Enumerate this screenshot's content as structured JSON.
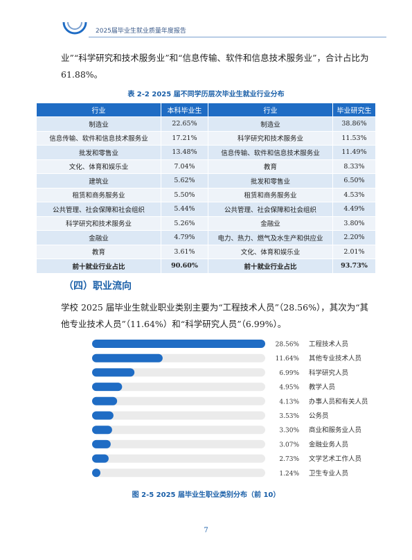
{
  "header": {
    "title": "2025届毕业生就业质量年度报告"
  },
  "intro": {
    "text": "业”“科学研究和技术服务业”和“信息传输、软件和信息技术服务业”，合计占比为 61.88%。"
  },
  "table": {
    "caption": "表 2-2  2025 届不同学历层次毕业生就业行业分布",
    "headers": [
      "行业",
      "本科毕业生",
      "行业",
      "毕业研究生"
    ],
    "rows": [
      [
        "制造业",
        "22.65%",
        "制造业",
        "38.86%"
      ],
      [
        "信息传输、软件和信息技术服务业",
        "17.21%",
        "科学研究和技术服务业",
        "11.53%"
      ],
      [
        "批发和零售业",
        "13.48%",
        "信息传输、软件和信息技术服务业",
        "11.49%"
      ],
      [
        "文化、体育和娱乐业",
        "7.04%",
        "教育",
        "8.33%"
      ],
      [
        "建筑业",
        "5.62%",
        "批发和零售业",
        "6.50%"
      ],
      [
        "租赁和商务服务业",
        "5.50%",
        "租赁和商务服务业",
        "4.53%"
      ],
      [
        "公共管理、社会保障和社会组织",
        "5.44%",
        "公共管理、社会保障和社会组织",
        "4.49%"
      ],
      [
        "科学研究和技术服务业",
        "5.26%",
        "金融业",
        "3.80%"
      ],
      [
        "金融业",
        "4.79%",
        "电力、热力、燃气及水生产和供应业",
        "2.20%"
      ],
      [
        "教育",
        "3.61%",
        "文化、体育和娱乐业",
        "2.01%"
      ]
    ],
    "total": [
      "前十就业行业占比",
      "90.60%",
      "前十就业行业占比",
      "93.73%"
    ]
  },
  "section": {
    "title": "（四）职业流向"
  },
  "occupation_para": {
    "text": "学校 2025 届毕业生就业职业类别主要为“工程技术人员”（28.56%），其次为“其他专业技术人员”（11.64%）和“科学研究人员”（6.99%）。"
  },
  "chart_data": {
    "type": "bar",
    "orientation": "horizontal",
    "categories": [
      "工程技术人员",
      "其他专业技术人员",
      "科学研究人员",
      "教学人员",
      "办事人员和有关人员",
      "公务员",
      "商业和服务业人员",
      "金融业务人员",
      "文学艺术工作人员",
      "卫生专业人员"
    ],
    "values": [
      28.56,
      11.64,
      6.99,
      4.95,
      4.13,
      3.53,
      3.3,
      3.07,
      2.73,
      1.24
    ],
    "value_labels": [
      "28.56%",
      "11.64%",
      "6.99%",
      "4.95%",
      "4.13%",
      "3.53%",
      "3.30%",
      "3.07%",
      "2.73%",
      "1.24%"
    ],
    "xlim": [
      0,
      28.56
    ],
    "bar_color": "#1f6cc4",
    "track_color": "#ebebeb",
    "title": "图 2-5  2025 届毕业生职业类别分布（前 10）"
  },
  "page": {
    "number": "7"
  }
}
